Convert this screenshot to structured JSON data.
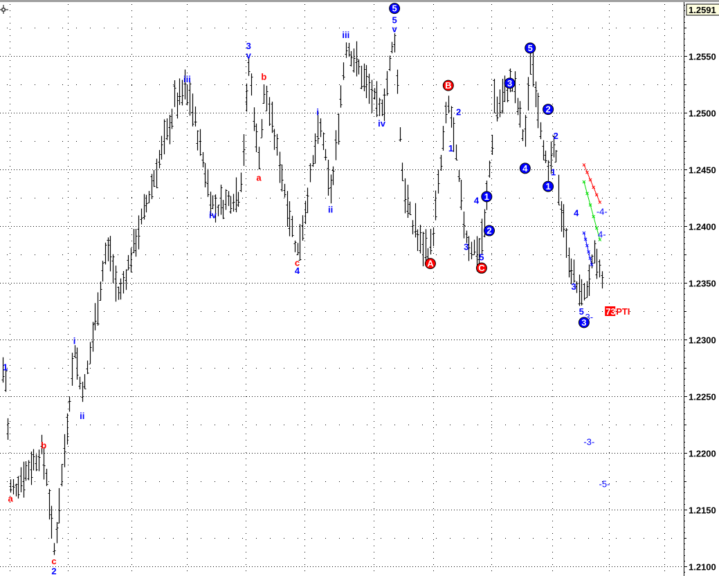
{
  "chart_data": {
    "type": "ohlc-bar",
    "title": "",
    "xlabel": "",
    "ylabel": "",
    "ylim": [
      1.2095,
      1.26
    ],
    "grid": true,
    "current_price": "1.2591",
    "y_ticks": [
      "1.2100",
      "1.2150",
      "1.2200",
      "1.2250",
      "1.2300",
      "1.2350",
      "1.2400",
      "1.2450",
      "1.2500",
      "1.2550"
    ],
    "bar_count": 235,
    "price_path_pivots": [
      [
        0,
        1.2262
      ],
      [
        1,
        1.2275
      ],
      [
        3,
        1.2165
      ],
      [
        16,
        1.2205
      ],
      [
        20,
        1.211
      ],
      [
        28,
        1.2295
      ],
      [
        31,
        1.2245
      ],
      [
        41,
        1.239
      ],
      [
        45,
        1.2335
      ],
      [
        67,
        1.2505
      ],
      [
        72,
        1.2525
      ],
      [
        82,
        1.2415
      ],
      [
        93,
        1.243
      ],
      [
        96,
        1.2548
      ],
      [
        100,
        1.245
      ],
      [
        102,
        1.2525
      ],
      [
        115,
        1.2375
      ],
      [
        124,
        1.2495
      ],
      [
        128,
        1.242
      ],
      [
        134,
        1.2562
      ],
      [
        148,
        1.2497
      ],
      [
        153,
        1.257
      ],
      [
        156,
        1.244
      ],
      [
        161,
        1.239
      ],
      [
        167,
        1.2375
      ],
      [
        174,
        1.2515
      ],
      [
        181,
        1.2385
      ],
      [
        187,
        1.2375
      ],
      [
        192,
        1.25
      ],
      [
        199,
        1.253
      ],
      [
        204,
        1.247
      ],
      [
        206,
        1.2555
      ],
      [
        213,
        1.244
      ],
      [
        215,
        1.248
      ],
      [
        219,
        1.239
      ],
      [
        226,
        1.233
      ],
      [
        232,
        1.238
      ],
      [
        234,
        1.2345
      ]
    ],
    "wave_labels": [
      {
        "text": "1",
        "color": "#0000ff",
        "circle": false,
        "bar": 1,
        "price": 1.2276
      },
      {
        "text": "a",
        "color": "#ff0000",
        "circle": false,
        "bar": 3,
        "price": 1.216
      },
      {
        "text": "b",
        "color": "#ff0000",
        "circle": false,
        "bar": 16,
        "price": 1.2207
      },
      {
        "text": "c",
        "color": "#ff0000",
        "circle": false,
        "bar": 20,
        "price": 1.2105
      },
      {
        "text": "2",
        "color": "#0000ff",
        "circle": false,
        "bar": 20,
        "price": 1.2096
      },
      {
        "text": "i",
        "color": "#0000ff",
        "circle": false,
        "bar": 28,
        "price": 1.2299
      },
      {
        "text": "ii",
        "color": "#0000ff",
        "circle": false,
        "bar": 31,
        "price": 1.2233
      },
      {
        "text": "iii",
        "color": "#0000ff",
        "circle": false,
        "bar": 72,
        "price": 1.253
      },
      {
        "text": "iv",
        "color": "#0000ff",
        "circle": false,
        "bar": 82,
        "price": 1.241
      },
      {
        "text": "3",
        "color": "#0000ff",
        "circle": false,
        "bar": 96,
        "price": 1.2559
      },
      {
        "text": "v",
        "color": "#0000ff",
        "circle": false,
        "bar": 96,
        "price": 1.2551
      },
      {
        "text": "b",
        "color": "#ff0000",
        "circle": false,
        "bar": 102,
        "price": 1.2532
      },
      {
        "text": "a",
        "color": "#ff0000",
        "circle": false,
        "bar": 100,
        "price": 1.2443
      },
      {
        "text": "c",
        "color": "#ff0000",
        "circle": false,
        "bar": 115,
        "price": 1.2368
      },
      {
        "text": "4",
        "color": "#0000ff",
        "circle": false,
        "bar": 115,
        "price": 1.2361
      },
      {
        "text": "i",
        "color": "#0000ff",
        "circle": false,
        "bar": 123,
        "price": 1.2501
      },
      {
        "text": "ii",
        "color": "#0000ff",
        "circle": false,
        "bar": 128,
        "price": 1.2415
      },
      {
        "text": "iii",
        "color": "#0000ff",
        "circle": false,
        "bar": 134,
        "price": 1.2569
      },
      {
        "text": "iv",
        "color": "#0000ff",
        "circle": false,
        "bar": 148,
        "price": 1.2491
      },
      {
        "text": "5",
        "color": "#0000ff",
        "circle": true,
        "bar": 153,
        "price": 1.2592
      },
      {
        "text": "5",
        "color": "#0000ff",
        "circle": false,
        "bar": 153,
        "price": 1.2582
      },
      {
        "text": "v",
        "color": "#0000ff",
        "circle": false,
        "bar": 153,
        "price": 1.2574
      },
      {
        "text": "B",
        "color": "#ff0000",
        "circle": true,
        "bar": 174,
        "price": 1.2524
      },
      {
        "text": "2",
        "color": "#0000ff",
        "circle": false,
        "bar": 178,
        "price": 1.2501
      },
      {
        "text": "1",
        "color": "#0000ff",
        "circle": false,
        "bar": 175,
        "price": 1.2469
      },
      {
        "text": "A",
        "color": "#ff0000",
        "circle": true,
        "bar": 167,
        "price": 1.2367
      },
      {
        "text": "3",
        "color": "#0000ff",
        "circle": false,
        "bar": 181,
        "price": 1.2382
      },
      {
        "text": "4",
        "color": "#0000ff",
        "circle": false,
        "bar": 185,
        "price": 1.2423
      },
      {
        "text": "1",
        "color": "#0000ff",
        "circle": true,
        "bar": 189,
        "price": 1.2426
      },
      {
        "text": "2",
        "color": "#0000ff",
        "circle": true,
        "bar": 190,
        "price": 1.2396
      },
      {
        "text": "5",
        "color": "#0000ff",
        "circle": false,
        "bar": 187,
        "price": 1.2373
      },
      {
        "text": "C",
        "color": "#ff0000",
        "circle": true,
        "bar": 187,
        "price": 1.2363
      },
      {
        "text": "3",
        "color": "#0000ff",
        "circle": true,
        "bar": 198,
        "price": 1.2526
      },
      {
        "text": "4",
        "color": "#0000ff",
        "circle": true,
        "bar": 204,
        "price": 1.2451
      },
      {
        "text": "5",
        "color": "#0000ff",
        "circle": true,
        "bar": 206,
        "price": 1.2557
      },
      {
        "text": "2",
        "color": "#0000ff",
        "circle": true,
        "bar": 213,
        "price": 1.2503
      },
      {
        "text": "2",
        "color": "#0000ff",
        "circle": false,
        "bar": 216,
        "price": 1.248
      },
      {
        "text": "1",
        "color": "#0000ff",
        "circle": false,
        "bar": 215,
        "price": 1.2448
      },
      {
        "text": "1",
        "color": "#0000ff",
        "circle": true,
        "bar": 213,
        "price": 1.2435
      },
      {
        "text": "4",
        "color": "#0000ff",
        "circle": false,
        "bar": 224,
        "price": 1.2412
      },
      {
        "text": "3",
        "color": "#0000ff",
        "circle": false,
        "bar": 223,
        "price": 1.2347
      },
      {
        "text": "5",
        "color": "#0000ff",
        "circle": false,
        "bar": 226,
        "price": 1.2325
      },
      {
        "text": "3",
        "color": "#0000ff",
        "circle": true,
        "bar": 227,
        "price": 1.2315
      },
      {
        "text": "3-",
        "color": "#0000ff",
        "circle": false,
        "bar": 229,
        "price": 1.232
      },
      {
        "text": "-4-",
        "color": "#0000ff",
        "circle": false,
        "bar": 234,
        "price": 1.2413
      },
      {
        "text": "4-",
        "color": "#0000ff",
        "circle": false,
        "bar": 234,
        "price": 1.2393
      },
      {
        "text": "-3-",
        "color": "#0000ff",
        "circle": false,
        "bar": 229,
        "price": 1.221
      },
      {
        "text": "-5-",
        "color": "#0000ff",
        "circle": false,
        "bar": 235,
        "price": 1.2173
      }
    ],
    "pti": {
      "value": "73",
      "text": "PTI",
      "color": "#ff0000",
      "bar": 236,
      "price": 1.2325
    },
    "channel_lines": [
      {
        "color": "#ff0000",
        "from": [
          227,
          1.2454
        ],
        "to": [
          233.2,
          1.2421
        ]
      },
      {
        "color": "#00dd00",
        "from": [
          227,
          1.2439
        ],
        "to": [
          233.2,
          1.2388
        ]
      },
      {
        "color": "#0000ff",
        "from": [
          227,
          1.2394
        ],
        "to": [
          230,
          1.2366
        ]
      }
    ],
    "colors": {
      "bars": "#000000",
      "grid": "#000000",
      "wave_blue": "#0000ff",
      "wave_red": "#ff0000",
      "price_box": "#ffffe0"
    },
    "crosshair_icon": "crosshair-cursor-icon"
  }
}
